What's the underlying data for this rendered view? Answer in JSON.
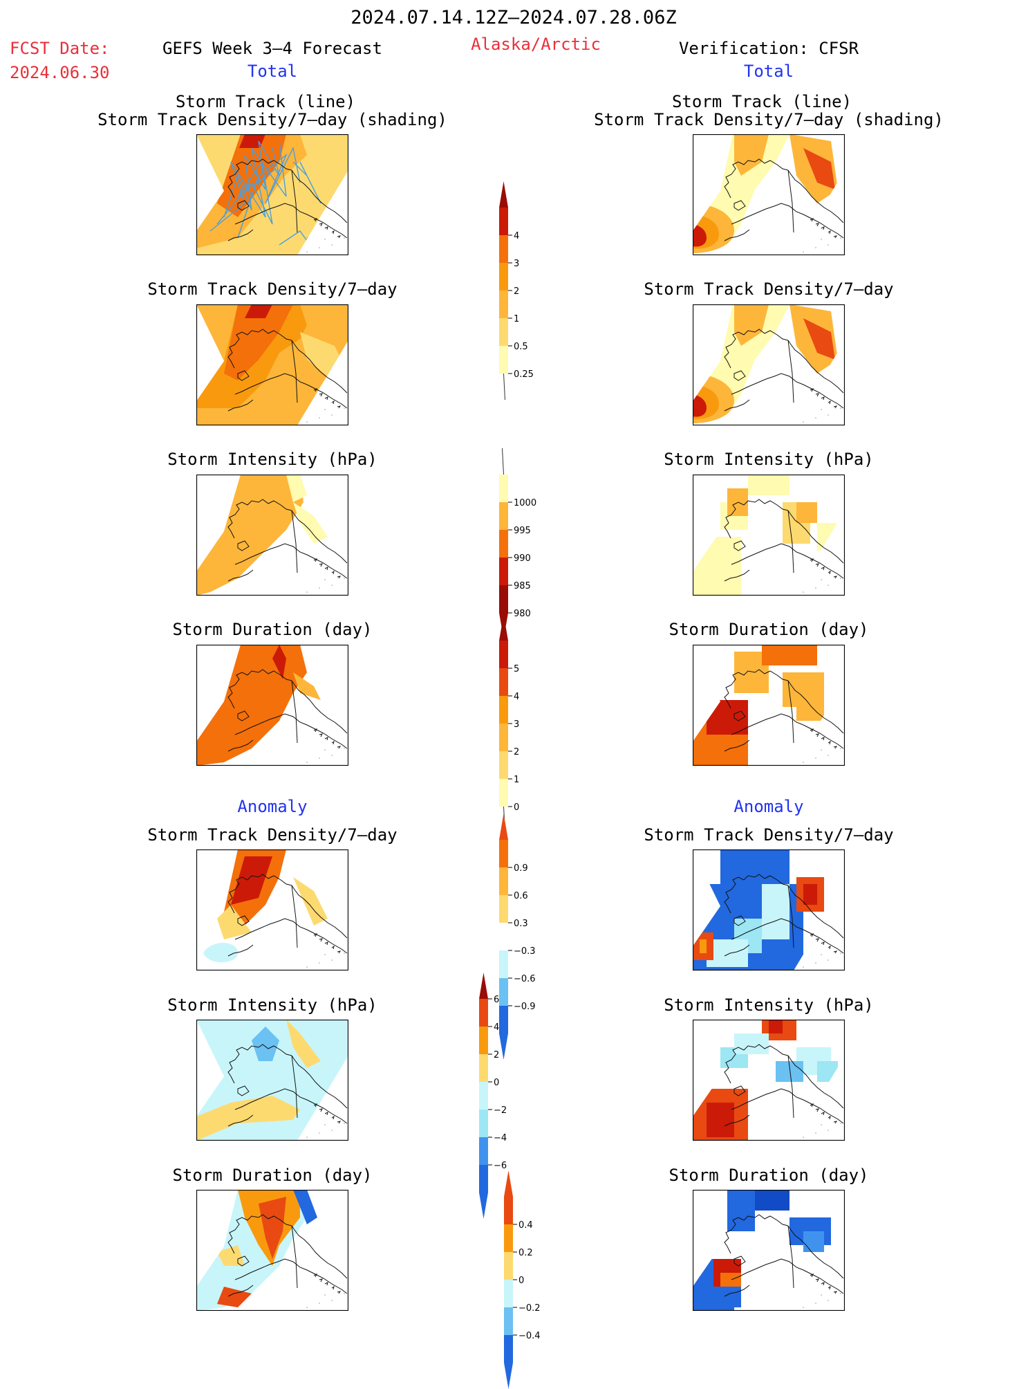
{
  "header": {
    "date_range": "2024.07.14.12Z–2024.07.28.06Z",
    "fcst_label": "FCST Date:",
    "fcst_date": "2024.06.30",
    "forecast_title": "GEFS Week 3–4 Forecast",
    "region": "Alaska/Arctic",
    "verification": "Verification: CFSR"
  },
  "sections": {
    "total": "Total",
    "anomaly": "Anomaly"
  },
  "panel_titles": {
    "track_line": "Storm Track (line)",
    "track_shading": "Storm Track Density/7–day (shading)",
    "density": "Storm Track Density/7–day",
    "intensity": "Storm Intensity (hPa)",
    "duration": "Storm Duration (day)"
  },
  "colorbars": {
    "density": [
      "4",
      "3",
      "2",
      "1",
      "0.5",
      "0.25"
    ],
    "intensity": [
      "1000",
      "995",
      "990",
      "985",
      "980"
    ],
    "duration": [
      "5",
      "4",
      "3",
      "2",
      "1",
      "0"
    ],
    "density_anom": [
      "0.9",
      "0.6",
      "0.3",
      "−0.3",
      "−0.6",
      "−0.9"
    ],
    "intensity_anom": [
      "6",
      "4",
      "2",
      "0",
      "−2",
      "−4",
      "−6"
    ],
    "duration_anom": [
      "0.4",
      "0.2",
      "0",
      "−0.2",
      "−0.4"
    ]
  },
  "palette": {
    "warm": [
      "#fffbb0",
      "#fdda70",
      "#fdb63a",
      "#f99a0e",
      "#f4700a",
      "#e84a12",
      "#cc1a08",
      "#9a0c06"
    ],
    "cool": [
      "#c8f5fa",
      "#9de6f4",
      "#6ac1f2",
      "#3f93ee",
      "#2268df",
      "#124bc6"
    ],
    "track_line": "#4a9fe0"
  }
}
